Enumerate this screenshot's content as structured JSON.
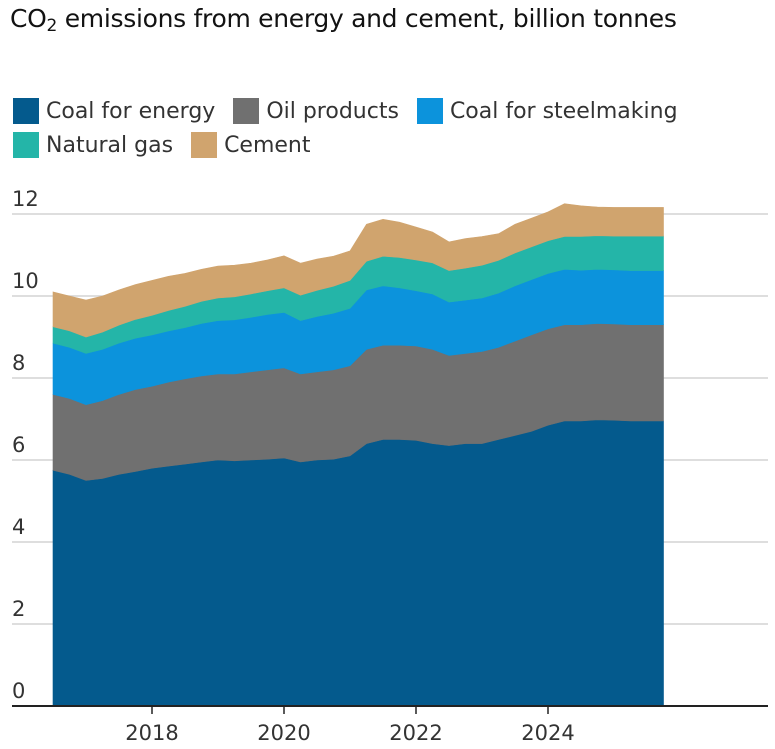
{
  "title_main": "CO",
  "title_sub": "2",
  "title_rest": " emissions from energy and cement, billion tonnes",
  "chart_data": {
    "type": "area",
    "stacked": true,
    "title": "CO2 emissions from energy and cement, billion tonnes",
    "xlabel": "",
    "ylabel": "",
    "ylim": [
      0,
      12
    ],
    "xlim": [
      2016.0,
      2026.0
    ],
    "yticks": [
      0,
      2,
      4,
      6,
      8,
      10,
      12
    ],
    "xticks": [
      2018,
      2020,
      2022,
      2024
    ],
    "grid": "horizontal",
    "legend_position": "top",
    "x": [
      2016.5,
      2016.75,
      2017.0,
      2017.25,
      2017.5,
      2017.75,
      2018.0,
      2018.25,
      2018.5,
      2018.75,
      2019.0,
      2019.25,
      2019.5,
      2019.75,
      2020.0,
      2020.25,
      2020.5,
      2020.75,
      2021.0,
      2021.25,
      2021.5,
      2021.75,
      2022.0,
      2022.25,
      2022.5,
      2022.75,
      2023.0,
      2023.25,
      2023.5,
      2023.75,
      2024.0,
      2024.25,
      2024.5,
      2024.75,
      2025.0,
      2025.25,
      2025.5,
      2025.75
    ],
    "series": [
      {
        "name": "Coal for energy",
        "color": "#045a8d",
        "values": [
          5.75,
          5.65,
          5.5,
          5.55,
          5.65,
          5.72,
          5.8,
          5.85,
          5.9,
          5.95,
          6.0,
          5.98,
          6.0,
          6.02,
          6.05,
          5.95,
          6.0,
          6.02,
          6.1,
          6.4,
          6.5,
          6.5,
          6.48,
          6.4,
          6.35,
          6.4,
          6.4,
          6.5,
          6.6,
          6.7,
          6.85,
          6.95,
          6.95,
          6.98,
          6.97,
          6.95,
          6.95,
          6.95
        ]
      },
      {
        "name": "Oil products",
        "color": "#707070",
        "values": [
          1.85,
          1.85,
          1.85,
          1.9,
          1.95,
          2.0,
          2.0,
          2.05,
          2.08,
          2.1,
          2.1,
          2.12,
          2.15,
          2.18,
          2.2,
          2.15,
          2.15,
          2.18,
          2.2,
          2.3,
          2.3,
          2.3,
          2.3,
          2.3,
          2.2,
          2.2,
          2.25,
          2.25,
          2.3,
          2.35,
          2.35,
          2.35,
          2.35,
          2.35,
          2.35,
          2.35,
          2.35,
          2.35
        ]
      },
      {
        "name": "Coal for steelmaking",
        "color": "#0c93dc",
        "values": [
          1.25,
          1.25,
          1.25,
          1.25,
          1.25,
          1.25,
          1.25,
          1.25,
          1.25,
          1.28,
          1.3,
          1.32,
          1.33,
          1.35,
          1.35,
          1.3,
          1.35,
          1.38,
          1.4,
          1.45,
          1.45,
          1.4,
          1.35,
          1.35,
          1.3,
          1.3,
          1.3,
          1.32,
          1.35,
          1.35,
          1.35,
          1.35,
          1.33,
          1.32,
          1.32,
          1.32,
          1.32,
          1.32
        ]
      },
      {
        "name": "Natural gas",
        "color": "#24b5a8",
        "values": [
          0.4,
          0.4,
          0.4,
          0.42,
          0.44,
          0.46,
          0.48,
          0.5,
          0.52,
          0.54,
          0.55,
          0.56,
          0.57,
          0.58,
          0.6,
          0.62,
          0.64,
          0.66,
          0.68,
          0.7,
          0.72,
          0.74,
          0.75,
          0.76,
          0.77,
          0.78,
          0.8,
          0.8,
          0.8,
          0.8,
          0.8,
          0.8,
          0.82,
          0.82,
          0.82,
          0.84,
          0.84,
          0.84
        ]
      },
      {
        "name": "Cement",
        "color": "#d0a46e",
        "values": [
          0.85,
          0.85,
          0.9,
          0.88,
          0.86,
          0.85,
          0.85,
          0.83,
          0.8,
          0.78,
          0.78,
          0.77,
          0.75,
          0.75,
          0.78,
          0.78,
          0.76,
          0.73,
          0.72,
          0.9,
          0.9,
          0.86,
          0.8,
          0.75,
          0.7,
          0.72,
          0.7,
          0.65,
          0.7,
          0.7,
          0.7,
          0.8,
          0.75,
          0.7,
          0.7,
          0.7,
          0.7,
          0.7
        ]
      }
    ]
  }
}
